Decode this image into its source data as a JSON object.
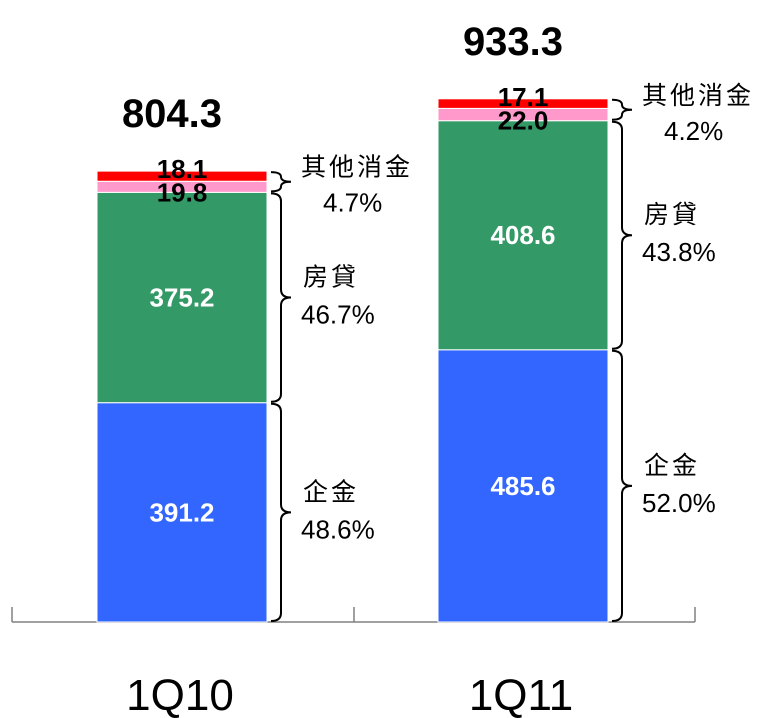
{
  "chart_data": {
    "type": "bar",
    "stacked": true,
    "title": "",
    "xlabel": "",
    "ylabel": "",
    "categories": [
      "1Q10",
      "1Q11"
    ],
    "totals": [
      "804.3",
      "933.3"
    ],
    "series": [
      {
        "key": "corporate",
        "color": "#3366FF",
        "text_color": "#FFFFFF",
        "values": [
          391.2,
          485.6
        ],
        "labels": [
          "391.2",
          "485.6"
        ]
      },
      {
        "key": "mortgage",
        "color": "#339966",
        "text_color": "#FFFFFF",
        "values": [
          375.2,
          408.6
        ],
        "labels": [
          "375.2",
          "408.6"
        ]
      },
      {
        "key": "pink",
        "color": "#FF99CC",
        "text_color": "#000000",
        "values": [
          19.8,
          22.0
        ],
        "labels": [
          "19.8",
          "22.0"
        ]
      },
      {
        "key": "red",
        "color": "#FF0000",
        "text_color": "#000000",
        "values": [
          18.1,
          17.1
        ],
        "labels": [
          "18.1",
          "17.1"
        ]
      }
    ],
    "annotations": [
      [
        {
          "name": "企金",
          "pct": "48.6%",
          "covers": [
            "corporate"
          ]
        },
        {
          "name": "房貸",
          "pct": "46.7%",
          "covers": [
            "mortgage"
          ]
        },
        {
          "name": "其他消金",
          "pct": "4.7%",
          "covers": [
            "pink",
            "red"
          ]
        }
      ],
      [
        {
          "name": "企金",
          "pct": "52.0%",
          "covers": [
            "corporate"
          ]
        },
        {
          "name": "房貸",
          "pct": "43.8%",
          "covers": [
            "mortgage"
          ]
        },
        {
          "name": "其他消金",
          "pct": "4.2%",
          "covers": [
            "pink",
            "red"
          ]
        }
      ]
    ],
    "grid": false,
    "legend": "none"
  }
}
